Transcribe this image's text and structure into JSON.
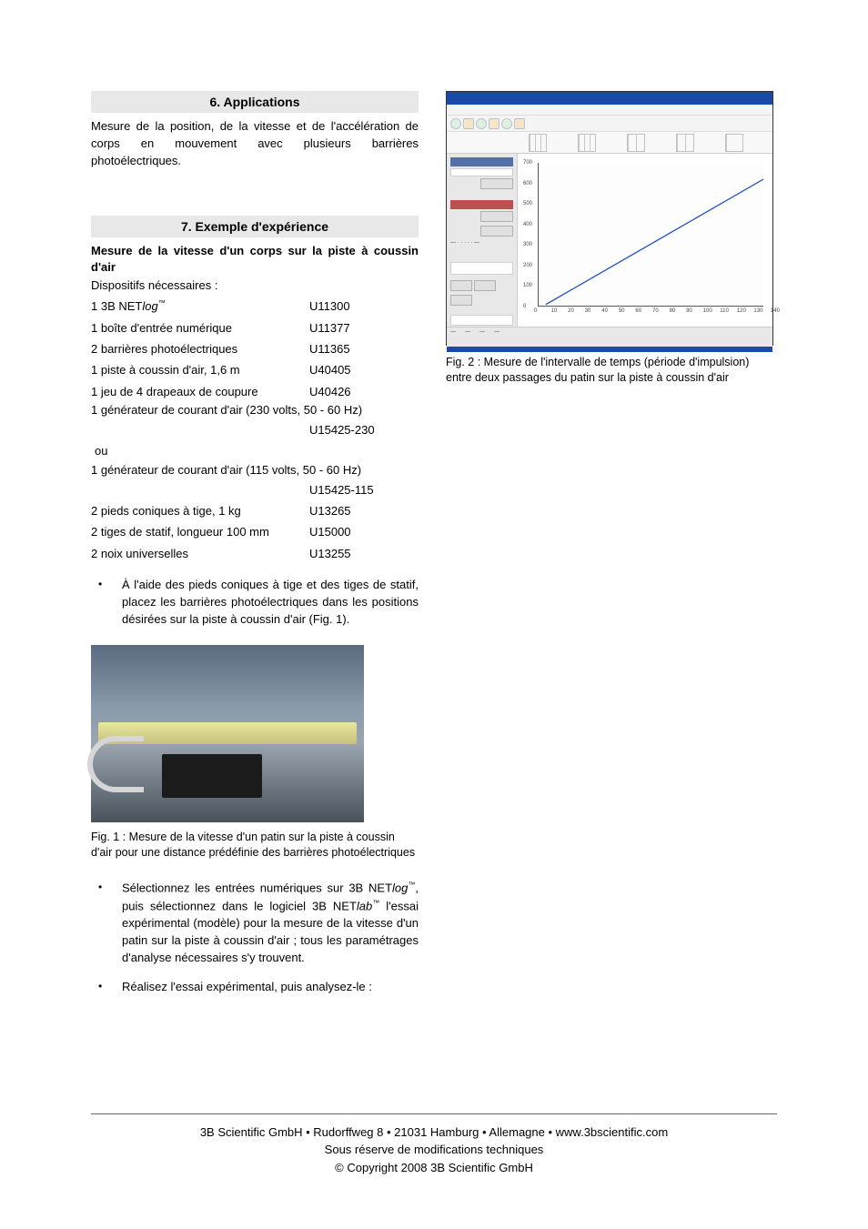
{
  "section6": {
    "heading": "6. Applications",
    "text": "Mesure de la position, de la vitesse et de l'accélération de corps en mouvement avec plusieurs barrières photoélectriques."
  },
  "section7": {
    "heading": "7. Exemple d'expérience",
    "title": "Mesure de la vitesse d'un corps sur la piste à coussin d'air",
    "disp_label": "Dispositifs nécessaires :",
    "equipment": [
      {
        "qty_name": "1 3B NETlog™",
        "name_prefix": "1 3B NET",
        "name_italic": "log",
        "name_tm": "™",
        "code": "U11300"
      },
      {
        "qty_name": "1 boîte d'entrée numérique",
        "code": "U11377"
      },
      {
        "qty_name": "2 barrières photoélectriques",
        "code": "U11365"
      },
      {
        "qty_name": "1 piste à coussin d'air, 1,6 m",
        "code": "U40405"
      },
      {
        "qty_name": "1 jeu de 4 drapeaux de coupure",
        "code": "U40426"
      }
    ],
    "gen230_text": "1 générateur de courant d'air (230 volts, 50 - 60 Hz)",
    "gen230_code": "U15425-230",
    "ou": "ou",
    "gen115_text": "1 générateur de courant d'air (115 volts, 50 - 60 Hz)",
    "gen115_code": "U15425-115",
    "equipment2": [
      {
        "qty_name": "2 pieds coniques à tige, 1 kg",
        "code": "U13265"
      },
      {
        "qty_name": "2 tiges de statif, longueur 100 mm",
        "code": "U15000"
      },
      {
        "qty_name": "2 noix universelles",
        "code": "U13255"
      }
    ],
    "bullet1": "À l'aide des pieds coniques à tige et des tiges de statif, placez les barrières photoélectriques dans les positions désirées sur la piste à coussin d'air (Fig. 1).",
    "fig1_caption": "Fig. 1 : Mesure de la vitesse d'un patin sur la piste à coussin d'air pour une distance prédéfinie des barrières photoélectriques",
    "bullet2_pre": "Sélectionnez les entrées numériques sur 3B NET",
    "bullet2_log": "log",
    "bullet2_mid": ", puis sélectionnez dans le logiciel 3B NET",
    "bullet2_lab": "lab",
    "bullet2_post": " l'essai expérimental (modèle) pour la mesure de la vitesse d'un patin sur la piste à coussin d'air ; tous les paramétrages d'analyse nécessaires s'y trouvent.",
    "bullet3": "Réalisez l'essai expérimental, puis analysez-le :"
  },
  "fig2": {
    "caption": "Fig. 2 : Mesure de l'intervalle de temps (période d'impulsion) entre deux passages du patin sur la piste à coussin d'air",
    "chart": {
      "type": "line",
      "line_color": "#2050c0",
      "background_color": "#ffffff",
      "grid_color": "#f0f0f0",
      "y_values": [
        0,
        100,
        200,
        300,
        400,
        500,
        600,
        700
      ],
      "y_ticks": [
        "0",
        "100",
        "200",
        "300",
        "400",
        "500",
        "600",
        "700"
      ],
      "x_ticks": [
        "0",
        "10",
        "20",
        "30",
        "40",
        "50",
        "60",
        "70",
        "80",
        "90",
        "100",
        "110",
        "120",
        "130",
        "140"
      ],
      "line_points": [
        [
          5,
          10
        ],
        [
          140,
          620
        ]
      ],
      "bottom_bar_color": "#1a4aa8"
    }
  },
  "footer": {
    "line1": "3B Scientific GmbH • Rudorffweg 8 • 21031 Hamburg • Allemagne • www.3bscientific.com",
    "line2": "Sous réserve de modifications techniques",
    "line3": "© Copyright 2008 3B Scientific GmbH"
  }
}
